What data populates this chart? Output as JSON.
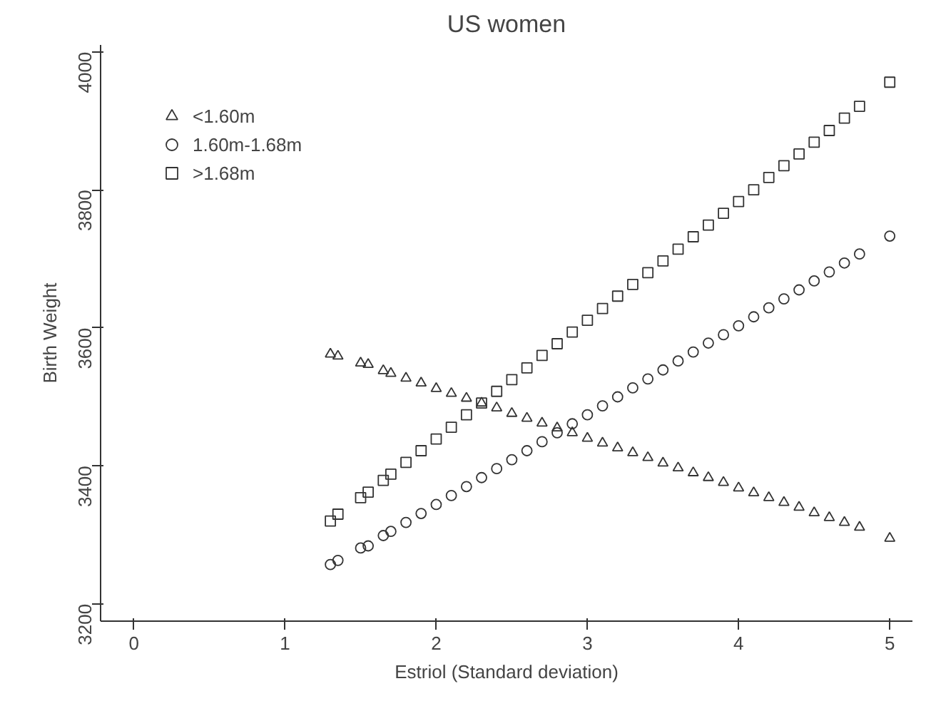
{
  "chart_data": {
    "type": "scatter",
    "title": "US women",
    "xlabel": "Estriol (Standard deviation)",
    "ylabel": "Birth Weight",
    "x": [
      1.3,
      1.35,
      1.5,
      1.55,
      1.65,
      1.7,
      1.8,
      1.9,
      2.0,
      2.1,
      2.2,
      2.3,
      2.4,
      2.5,
      2.6,
      2.7,
      2.8,
      2.9,
      3.0,
      3.1,
      3.2,
      3.3,
      3.4,
      3.5,
      3.6,
      3.7,
      3.8,
      3.9,
      4.0,
      4.1,
      4.2,
      4.3,
      4.4,
      4.5,
      4.6,
      4.7,
      4.8,
      5.0
    ],
    "series": [
      {
        "name": "<1.60m",
        "color": "#333333",
        "marker": "triangle",
        "values": [
          3562,
          3559,
          3549,
          3547,
          3538,
          3534,
          3527,
          3520,
          3512,
          3505,
          3498,
          3491,
          3484,
          3476,
          3469,
          3462,
          3455,
          3448,
          3440,
          3433,
          3426,
          3419,
          3412,
          3404,
          3397,
          3390,
          3383,
          3376,
          3368,
          3361,
          3354,
          3347,
          3340,
          3332,
          3325,
          3318,
          3311,
          3295
        ]
      },
      {
        "name": "1.60m-1.68m",
        "color": "#333333",
        "marker": "circle",
        "values": [
          3257,
          3263,
          3281,
          3284,
          3299,
          3305,
          3318,
          3331,
          3344,
          3357,
          3370,
          3383,
          3396,
          3409,
          3422,
          3435,
          3448,
          3461,
          3474,
          3487,
          3500,
          3513,
          3526,
          3539,
          3552,
          3565,
          3578,
          3590,
          3603,
          3616,
          3629,
          3642,
          3655,
          3668,
          3681,
          3694,
          3707,
          3733
        ]
      },
      {
        "name": ">1.68m",
        "color": "#333333",
        "marker": "square",
        "values": [
          3320,
          3330,
          3354,
          3362,
          3379,
          3388,
          3405,
          3422,
          3439,
          3456,
          3474,
          3491,
          3508,
          3525,
          3542,
          3560,
          3577,
          3594,
          3611,
          3628,
          3646,
          3663,
          3680,
          3697,
          3714,
          3732,
          3749,
          3766,
          3783,
          3800,
          3818,
          3835,
          3852,
          3869,
          3886,
          3904,
          3921,
          3956
        ]
      }
    ],
    "xlim": [
      -0.22,
      5.15
    ],
    "ylim": [
      3175,
      4010
    ],
    "xticks": [
      0,
      1,
      2,
      3,
      4,
      5
    ],
    "yticks": [
      3200,
      3400,
      3600,
      3800,
      4000
    ],
    "grid": false,
    "legend": "top left"
  }
}
